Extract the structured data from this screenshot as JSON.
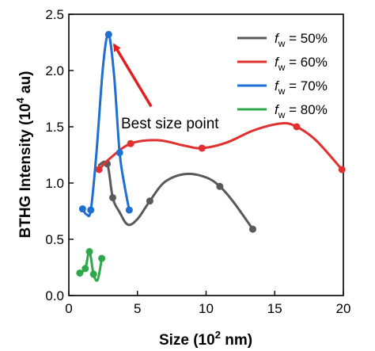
{
  "chart_data": {
    "type": "line",
    "xlabel": "Size  (10",
    "xlabel_sup": "2",
    "xlabel_end": " nm)",
    "ylabel": "BTHG Intensity (10",
    "ylabel_sup": "4",
    "ylabel_end": " au)",
    "xlim": [
      0,
      20
    ],
    "ylim": [
      0,
      2.5
    ],
    "xticks": [
      0,
      5,
      10,
      15,
      20
    ],
    "yticks": [
      0.0,
      0.5,
      1.0,
      1.5,
      2.0,
      2.5
    ],
    "xtick_labels": [
      "0",
      "5",
      "10",
      "15",
      "20"
    ],
    "ytick_labels": [
      "0.0",
      "0.5",
      "1.0",
      "1.5",
      "2.0",
      "2.5"
    ],
    "legend_position": "top-right",
    "grid": false,
    "annotation": {
      "text": "Best size point",
      "arrow_from": [
        6.0,
        1.68
      ],
      "arrow_to": [
        3.3,
        2.23
      ],
      "arrow_color": "#e02020"
    },
    "series": [
      {
        "name_main": "f",
        "name_sub": "w",
        "name_rest": " = 50%",
        "color": "#5a5a5a",
        "points": [
          [
            2.8,
            1.17
          ],
          [
            3.2,
            0.87
          ],
          [
            5.9,
            0.84
          ],
          [
            11.0,
            0.97
          ],
          [
            13.4,
            0.59
          ]
        ],
        "curve": [
          [
            2.2,
            1.16
          ],
          [
            2.8,
            1.17
          ],
          [
            3.2,
            0.87
          ],
          [
            3.7,
            0.74
          ],
          [
            4.3,
            0.63
          ],
          [
            5.0,
            0.68
          ],
          [
            5.9,
            0.84
          ],
          [
            7.0,
            1.01
          ],
          [
            8.5,
            1.08
          ],
          [
            10.0,
            1.05
          ],
          [
            11.0,
            0.97
          ],
          [
            12.0,
            0.83
          ],
          [
            13.4,
            0.59
          ]
        ]
      },
      {
        "name_main": "f",
        "name_sub": "w",
        "name_rest": " = 60%",
        "color": "#e03030",
        "points": [
          [
            2.2,
            1.12
          ],
          [
            4.5,
            1.35
          ],
          [
            9.7,
            1.31
          ],
          [
            16.6,
            1.5
          ],
          [
            19.9,
            1.12
          ]
        ],
        "curve": [
          [
            2.2,
            1.12
          ],
          [
            3.0,
            1.22
          ],
          [
            4.5,
            1.35
          ],
          [
            6.5,
            1.38
          ],
          [
            8.5,
            1.33
          ],
          [
            9.7,
            1.31
          ],
          [
            11.5,
            1.36
          ],
          [
            13.5,
            1.47
          ],
          [
            15.5,
            1.53
          ],
          [
            16.6,
            1.5
          ],
          [
            18.0,
            1.38
          ],
          [
            19.9,
            1.12
          ]
        ]
      },
      {
        "name_main": "f",
        "name_sub": "w",
        "name_rest": " = 70%",
        "color": "#1f6fd1",
        "points": [
          [
            1.0,
            0.77
          ],
          [
            1.6,
            0.76
          ],
          [
            2.9,
            2.32
          ],
          [
            3.7,
            1.27
          ],
          [
            4.4,
            0.76
          ]
        ],
        "curve": [
          [
            1.0,
            0.77
          ],
          [
            1.3,
            0.72
          ],
          [
            1.6,
            0.76
          ],
          [
            2.0,
            1.25
          ],
          [
            2.5,
            2.05
          ],
          [
            2.9,
            2.32
          ],
          [
            3.3,
            1.95
          ],
          [
            3.7,
            1.27
          ],
          [
            4.1,
            0.95
          ],
          [
            4.4,
            0.76
          ]
        ]
      },
      {
        "name_main": "f",
        "name_sub": "w",
        "name_rest": " = 80%",
        "color": "#2ea84a",
        "points": [
          [
            0.8,
            0.2
          ],
          [
            1.2,
            0.24
          ],
          [
            1.5,
            0.39
          ],
          [
            1.8,
            0.19
          ],
          [
            2.4,
            0.33
          ]
        ],
        "curve": [
          [
            0.8,
            0.2
          ],
          [
            1.2,
            0.24
          ],
          [
            1.5,
            0.39
          ],
          [
            1.8,
            0.19
          ],
          [
            2.1,
            0.14
          ],
          [
            2.4,
            0.33
          ]
        ]
      }
    ]
  }
}
